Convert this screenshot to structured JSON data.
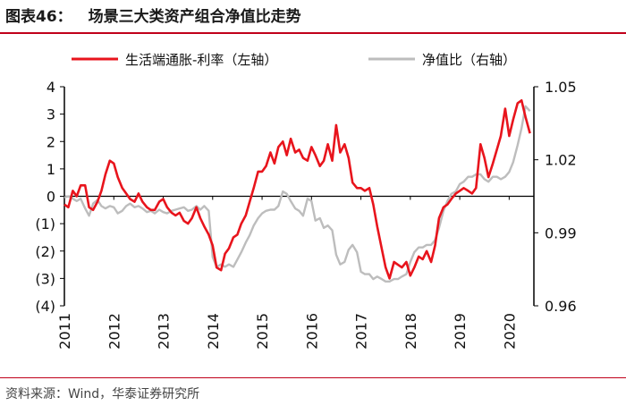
{
  "header": {
    "figure_number": "图表46：",
    "title": "场景三大类资产组合净值比走势"
  },
  "source": "资料来源：Wind，华泰证券研究所",
  "colors": {
    "accent": "#c0001a",
    "series_red": "#e8141c",
    "series_gray": "#bdbdbd"
  },
  "chart_data": {
    "type": "line",
    "title": "场景三大类资产组合净值比走势",
    "x_ticks": [
      "2011",
      "2012",
      "2013",
      "2014",
      "2015",
      "2016",
      "2017",
      "2018",
      "2019",
      "2020"
    ],
    "x_range": [
      2011.0,
      2020.5
    ],
    "y_left": {
      "range": [
        -4,
        4
      ],
      "ticks": [
        4,
        3,
        2,
        1,
        0,
        -1,
        -2,
        -3,
        -4
      ],
      "tick_labels": [
        "4",
        "3",
        "2",
        "1",
        "0",
        "(1)",
        "(2)",
        "(3)",
        "(4)"
      ]
    },
    "y_right": {
      "range": [
        0.96,
        1.05
      ],
      "ticks": [
        1.05,
        1.02,
        0.99,
        0.96
      ],
      "tick_labels": [
        "1.05",
        "1.02",
        "0.99",
        "0.96"
      ]
    },
    "series": [
      {
        "name": "生活端通胀-利率（左轴）",
        "axis": "left",
        "color": "#e8141c",
        "points": [
          [
            2011.0,
            -0.3
          ],
          [
            2011.08,
            -0.4
          ],
          [
            2011.17,
            0.2
          ],
          [
            2011.25,
            0.0
          ],
          [
            2011.33,
            0.4
          ],
          [
            2011.42,
            0.4
          ],
          [
            2011.5,
            -0.4
          ],
          [
            2011.58,
            -0.5
          ],
          [
            2011.67,
            -0.2
          ],
          [
            2011.75,
            0.2
          ],
          [
            2011.83,
            0.8
          ],
          [
            2011.92,
            1.3
          ],
          [
            2012.0,
            1.2
          ],
          [
            2012.08,
            0.7
          ],
          [
            2012.17,
            0.3
          ],
          [
            2012.25,
            0.1
          ],
          [
            2012.33,
            -0.1
          ],
          [
            2012.42,
            -0.2
          ],
          [
            2012.5,
            0.1
          ],
          [
            2012.58,
            -0.2
          ],
          [
            2012.67,
            -0.4
          ],
          [
            2012.75,
            -0.5
          ],
          [
            2012.83,
            -0.5
          ],
          [
            2012.92,
            -0.2
          ],
          [
            2013.0,
            -0.1
          ],
          [
            2013.08,
            -0.4
          ],
          [
            2013.17,
            -0.6
          ],
          [
            2013.25,
            -0.7
          ],
          [
            2013.33,
            -0.6
          ],
          [
            2013.42,
            -0.9
          ],
          [
            2013.5,
            -1.0
          ],
          [
            2013.58,
            -0.8
          ],
          [
            2013.67,
            -0.4
          ],
          [
            2013.75,
            -0.8
          ],
          [
            2013.83,
            -1.1
          ],
          [
            2013.92,
            -1.4
          ],
          [
            2014.0,
            -1.8
          ],
          [
            2014.08,
            -2.6
          ],
          [
            2014.17,
            -2.7
          ],
          [
            2014.25,
            -2.1
          ],
          [
            2014.33,
            -1.9
          ],
          [
            2014.42,
            -1.5
          ],
          [
            2014.5,
            -1.4
          ],
          [
            2014.58,
            -1.0
          ],
          [
            2014.67,
            -0.7
          ],
          [
            2014.75,
            -0.2
          ],
          [
            2014.83,
            0.3
          ],
          [
            2014.92,
            0.9
          ],
          [
            2015.0,
            0.9
          ],
          [
            2015.08,
            1.1
          ],
          [
            2015.17,
            1.6
          ],
          [
            2015.25,
            1.2
          ],
          [
            2015.33,
            1.8
          ],
          [
            2015.42,
            2.0
          ],
          [
            2015.5,
            1.5
          ],
          [
            2015.58,
            2.1
          ],
          [
            2015.67,
            1.6
          ],
          [
            2015.75,
            1.7
          ],
          [
            2015.83,
            1.4
          ],
          [
            2015.92,
            1.3
          ],
          [
            2016.0,
            1.8
          ],
          [
            2016.08,
            1.5
          ],
          [
            2016.17,
            1.1
          ],
          [
            2016.25,
            1.3
          ],
          [
            2016.33,
            1.9
          ],
          [
            2016.42,
            1.3
          ],
          [
            2016.5,
            2.6
          ],
          [
            2016.58,
            1.6
          ],
          [
            2016.67,
            1.9
          ],
          [
            2016.75,
            1.4
          ],
          [
            2016.83,
            0.5
          ],
          [
            2016.92,
            0.3
          ],
          [
            2017.0,
            0.3
          ],
          [
            2017.08,
            0.2
          ],
          [
            2017.17,
            0.3
          ],
          [
            2017.25,
            -0.3
          ],
          [
            2017.33,
            -1.1
          ],
          [
            2017.42,
            -1.9
          ],
          [
            2017.5,
            -2.6
          ],
          [
            2017.58,
            -3.0
          ],
          [
            2017.67,
            -2.4
          ],
          [
            2017.75,
            -2.5
          ],
          [
            2017.83,
            -2.6
          ],
          [
            2017.92,
            -2.4
          ],
          [
            2018.0,
            -2.9
          ],
          [
            2018.08,
            -2.6
          ],
          [
            2018.17,
            -2.2
          ],
          [
            2018.25,
            -2.3
          ],
          [
            2018.33,
            -2.0
          ],
          [
            2018.42,
            -2.4
          ],
          [
            2018.5,
            -1.8
          ],
          [
            2018.58,
            -0.8
          ],
          [
            2018.67,
            -0.4
          ],
          [
            2018.75,
            -0.3
          ],
          [
            2018.83,
            -0.1
          ],
          [
            2018.92,
            0.1
          ],
          [
            2019.0,
            0.2
          ],
          [
            2019.08,
            0.3
          ],
          [
            2019.17,
            0.2
          ],
          [
            2019.25,
            0.1
          ],
          [
            2019.33,
            0.3
          ],
          [
            2019.42,
            1.9
          ],
          [
            2019.5,
            1.4
          ],
          [
            2019.58,
            0.7
          ],
          [
            2019.67,
            1.2
          ],
          [
            2019.75,
            1.7
          ],
          [
            2019.83,
            2.2
          ],
          [
            2019.92,
            3.2
          ],
          [
            2020.0,
            2.2
          ],
          [
            2020.08,
            2.8
          ],
          [
            2020.17,
            3.4
          ],
          [
            2020.25,
            3.5
          ],
          [
            2020.33,
            2.9
          ],
          [
            2020.42,
            2.3
          ]
        ]
      },
      {
        "name": "净值比（右轴）",
        "axis": "right",
        "color": "#bdbdbd",
        "points": [
          [
            2011.0,
            1.0045
          ],
          [
            2011.08,
            1.005
          ],
          [
            2011.17,
            1.004
          ],
          [
            2011.25,
            1.003
          ],
          [
            2011.33,
            1.004
          ],
          [
            2011.42,
            1.0
          ],
          [
            2011.5,
            0.997
          ],
          [
            2011.58,
            1.002
          ],
          [
            2011.67,
            1.0035
          ],
          [
            2011.75,
            1.001
          ],
          [
            2011.83,
            1.0
          ],
          [
            2011.92,
            1.001
          ],
          [
            2012.0,
            1.0005
          ],
          [
            2012.08,
            0.998
          ],
          [
            2012.17,
            0.999
          ],
          [
            2012.25,
            1.001
          ],
          [
            2012.33,
            1.002
          ],
          [
            2012.42,
            1.0005
          ],
          [
            2012.5,
            1.001
          ],
          [
            2012.58,
            1.0
          ],
          [
            2012.67,
            0.9985
          ],
          [
            2012.75,
            0.999
          ],
          [
            2012.83,
            0.998
          ],
          [
            2012.92,
            0.9995
          ],
          [
            2013.0,
            0.9985
          ],
          [
            2013.08,
            0.998
          ],
          [
            2013.17,
            0.999
          ],
          [
            2013.25,
            0.9995
          ],
          [
            2013.33,
            1.0
          ],
          [
            2013.42,
            1.0005
          ],
          [
            2013.5,
            0.999
          ],
          [
            2013.58,
            0.9995
          ],
          [
            2013.67,
            1.001
          ],
          [
            2013.75,
            0.9995
          ],
          [
            2013.83,
            1.001
          ],
          [
            2013.92,
            0.999
          ],
          [
            2014.0,
            0.98
          ],
          [
            2014.08,
            0.976
          ],
          [
            2014.17,
            0.977
          ],
          [
            2014.25,
            0.976
          ],
          [
            2014.33,
            0.977
          ],
          [
            2014.42,
            0.976
          ],
          [
            2014.5,
            0.979
          ],
          [
            2014.58,
            0.982
          ],
          [
            2014.67,
            0.986
          ],
          [
            2014.75,
            0.989
          ],
          [
            2014.83,
            0.993
          ],
          [
            2014.92,
            0.996
          ],
          [
            2015.0,
            0.998
          ],
          [
            2015.08,
            0.999
          ],
          [
            2015.17,
            0.9995
          ],
          [
            2015.25,
            0.9995
          ],
          [
            2015.33,
            1.001
          ],
          [
            2015.42,
            1.007
          ],
          [
            2015.5,
            1.006
          ],
          [
            2015.58,
            1.003
          ],
          [
            2015.67,
            1.0
          ],
          [
            2015.75,
            0.999
          ],
          [
            2015.83,
            0.997
          ],
          [
            2015.92,
            1.004
          ],
          [
            2016.0,
            1.003
          ],
          [
            2016.08,
            0.995
          ],
          [
            2016.17,
            0.996
          ],
          [
            2016.25,
            0.992
          ],
          [
            2016.33,
            0.993
          ],
          [
            2016.42,
            0.991
          ],
          [
            2016.5,
            0.981
          ],
          [
            2016.58,
            0.977
          ],
          [
            2016.67,
            0.978
          ],
          [
            2016.75,
            0.983
          ],
          [
            2016.83,
            0.985
          ],
          [
            2016.92,
            0.982
          ],
          [
            2017.0,
            0.974
          ],
          [
            2017.08,
            0.973
          ],
          [
            2017.17,
            0.973
          ],
          [
            2017.25,
            0.971
          ],
          [
            2017.33,
            0.972
          ],
          [
            2017.42,
            0.971
          ],
          [
            2017.5,
            0.97
          ],
          [
            2017.58,
            0.97
          ],
          [
            2017.67,
            0.971
          ],
          [
            2017.75,
            0.971
          ],
          [
            2017.83,
            0.972
          ],
          [
            2017.92,
            0.973
          ],
          [
            2018.0,
            0.978
          ],
          [
            2018.08,
            0.982
          ],
          [
            2018.17,
            0.984
          ],
          [
            2018.25,
            0.984
          ],
          [
            2018.33,
            0.985
          ],
          [
            2018.42,
            0.985
          ],
          [
            2018.5,
            0.987
          ],
          [
            2018.58,
            0.992
          ],
          [
            2018.67,
            0.999
          ],
          [
            2018.75,
            1.003
          ],
          [
            2018.83,
            1.006
          ],
          [
            2018.92,
            1.007
          ],
          [
            2019.0,
            1.01
          ],
          [
            2019.08,
            1.011
          ],
          [
            2019.17,
            1.013
          ],
          [
            2019.25,
            1.013
          ],
          [
            2019.33,
            1.014
          ],
          [
            2019.42,
            1.014
          ],
          [
            2019.5,
            1.012
          ],
          [
            2019.58,
            1.011
          ],
          [
            2019.67,
            1.013
          ],
          [
            2019.75,
            1.013
          ],
          [
            2019.83,
            1.012
          ],
          [
            2019.92,
            1.013
          ],
          [
            2020.0,
            1.015
          ],
          [
            2020.08,
            1.019
          ],
          [
            2020.17,
            1.026
          ],
          [
            2020.25,
            1.033
          ],
          [
            2020.33,
            1.042
          ],
          [
            2020.42,
            1.04
          ]
        ]
      }
    ],
    "legend": {
      "position": "top",
      "entries": [
        "生活端通胀-利率（左轴）",
        "净值比（右轴）"
      ]
    }
  }
}
